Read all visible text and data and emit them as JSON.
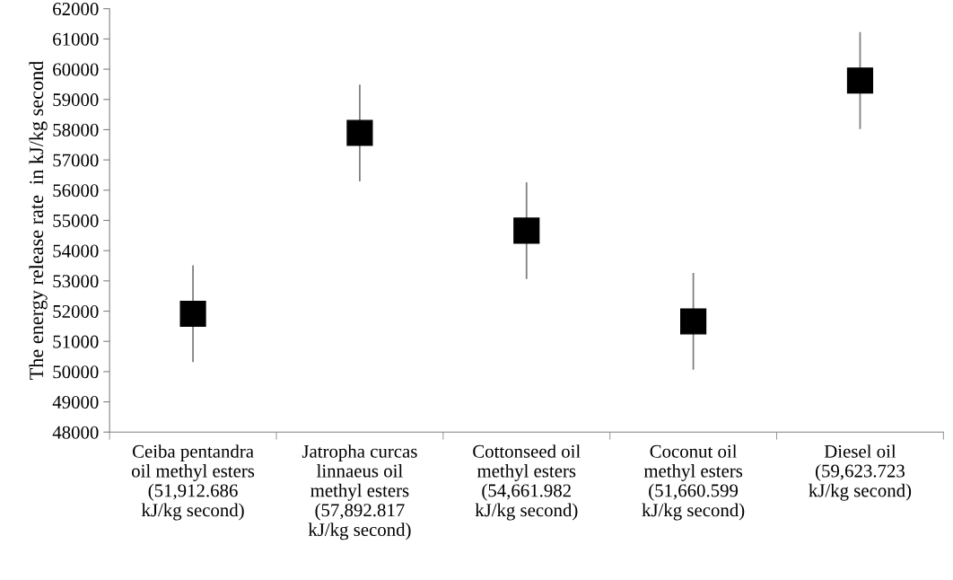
{
  "chart_data": {
    "type": "scatter",
    "ylabel": "The energy release rate  in kJ/kg second",
    "categories": [
      "Ceiba pentandra\noil methyl esters\n(51,912.686\nkJ/kg second)",
      "Jatropha curcas\nlinnaeus oil\nmethyl esters\n(57,892.817\nkJ/kg second)",
      "Cottonseed oil\nmethyl esters\n(54,661.982\nkJ/kg second)",
      "Coconut oil\nmethyl esters\n(51,660.599\nkJ/kg second)",
      "Diesel oil\n(59,623.723\nkJ/kg second)"
    ],
    "series": [
      {
        "color": "#000000",
        "values": [
          51912.686,
          57892.817,
          54661.982,
          51660.599,
          59623.723
        ],
        "errors": [
          1600,
          1600,
          1600,
          1600,
          1600
        ]
      }
    ],
    "marker": "square",
    "grid": false,
    "legend": false,
    "ylim": [
      48000,
      62000
    ],
    "yticks": [
      48000,
      49000,
      50000,
      51000,
      52000,
      53000,
      54000,
      55000,
      56000,
      57000,
      58000,
      59000,
      60000,
      61000,
      62000
    ]
  }
}
